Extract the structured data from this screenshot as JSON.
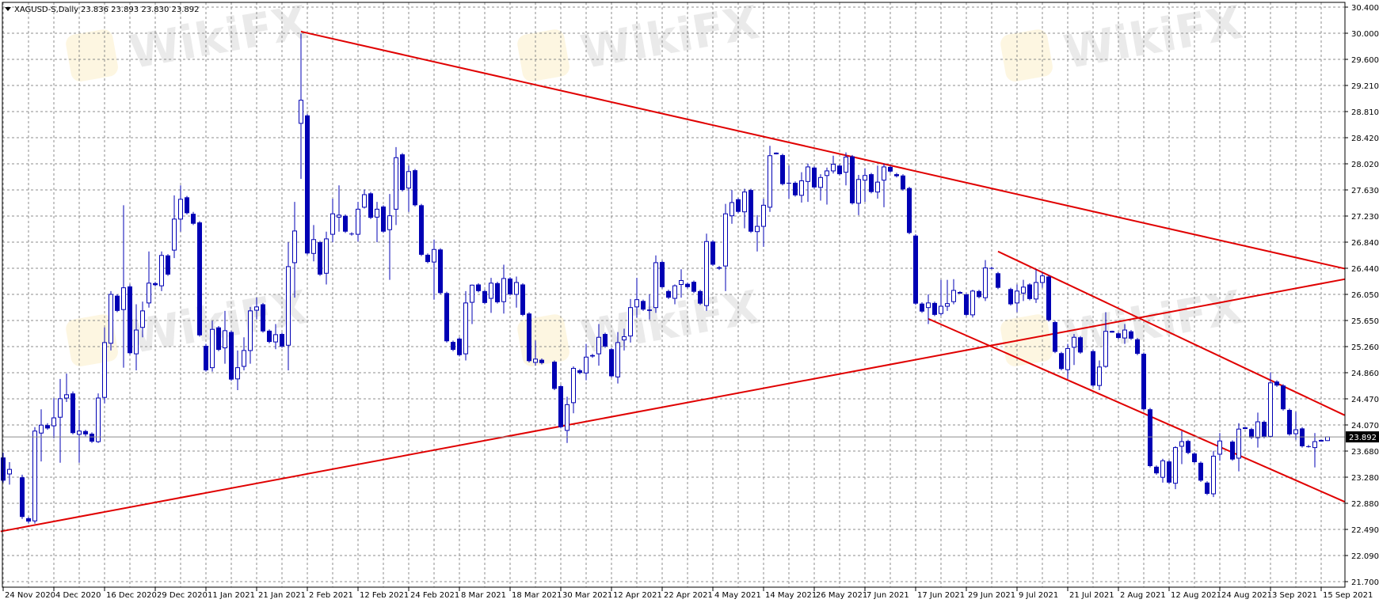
{
  "header": {
    "symbol_label": "XAGUSD-S,Daily",
    "ohlc_readout": "23.836 23.893 23.830 23.892",
    "menu_icon": "triangle-down-icon"
  },
  "watermark": "WikiFX",
  "colors": {
    "candle": "#0000b4",
    "trendline": "#e00000",
    "grid": "#8c8c8c",
    "price_line": "#8c8c8c",
    "price_label_bg": "#000000"
  },
  "chart_data": {
    "type": "candlestick",
    "symbol": "XAGUSD-S",
    "timeframe": "Daily",
    "grid": true,
    "ylim": [
      21.7,
      30.4
    ],
    "y_ticks": [
      "30.400",
      "30.000",
      "29.600",
      "29.210",
      "28.810",
      "28.420",
      "28.020",
      "27.630",
      "27.230",
      "26.840",
      "26.440",
      "26.050",
      "25.650",
      "25.260",
      "24.860",
      "24.470",
      "24.070",
      "23.680",
      "23.280",
      "22.880",
      "22.490",
      "22.090",
      "21.700"
    ],
    "x_ticks": [
      "24 Nov 2020",
      "4 Dec 2020",
      "16 Dec 2020",
      "29 Dec 2020",
      "11 Jan 2021",
      "21 Jan 2021",
      "2 Feb 2021",
      "12 Feb 2021",
      "24 Feb 2021",
      "8 Mar 2021",
      "18 Mar 2021",
      "30 Mar 2021",
      "12 Apr 2021",
      "22 Apr 2021",
      "4 May 2021",
      "14 May 2021",
      "26 May 2021",
      "7 Jun 2021",
      "17 Jun 2021",
      "29 Jun 2021",
      "9 Jul 2021",
      "21 Jul 2021",
      "2 Aug 2021",
      "12 Aug 2021",
      "24 Aug 2021",
      "3 Sep 2021",
      "15 Sep 2021"
    ],
    "current_price": "23.892",
    "ohlc_columns": [
      "open",
      "high",
      "low",
      "close"
    ],
    "candles": [
      [
        23.58,
        23.65,
        23.2,
        23.23
      ],
      [
        23.33,
        23.51,
        23.17,
        23.4
      ],
      null,
      [
        23.28,
        23.32,
        22.65,
        22.68
      ],
      [
        22.66,
        22.68,
        22.58,
        22.61
      ],
      [
        22.62,
        24.04,
        22.58,
        23.98
      ],
      [
        23.95,
        24.31,
        23.52,
        24.07
      ],
      [
        24.07,
        24.1,
        24.0,
        24.02
      ],
      [
        24.06,
        24.48,
        23.87,
        24.18
      ],
      [
        24.19,
        24.77,
        23.5,
        24.47
      ],
      [
        24.48,
        24.85,
        24.42,
        24.53
      ],
      [
        24.55,
        24.58,
        23.93,
        23.95
      ],
      [
        23.93,
        24.3,
        23.5,
        23.98
      ],
      [
        23.98,
        24.0,
        23.9,
        23.93
      ],
      [
        23.94,
        23.96,
        23.8,
        23.82
      ],
      [
        23.82,
        24.55,
        23.8,
        24.48
      ],
      [
        24.49,
        25.55,
        24.4,
        25.32
      ],
      [
        25.31,
        26.1,
        25.2,
        26.05
      ],
      [
        26.03,
        26.05,
        25.78,
        25.8
      ],
      [
        25.82,
        27.4,
        24.94,
        26.15
      ],
      [
        26.17,
        26.2,
        25.14,
        25.16
      ],
      [
        25.15,
        25.9,
        24.9,
        25.51
      ],
      [
        25.55,
        25.94,
        25.4,
        25.8
      ],
      [
        25.92,
        26.7,
        25.85,
        26.22
      ],
      [
        26.22,
        26.24,
        26.17,
        26.19
      ],
      [
        26.18,
        26.7,
        26.1,
        26.64
      ],
      [
        26.64,
        26.66,
        26.33,
        26.35
      ],
      [
        26.72,
        27.55,
        26.6,
        27.19
      ],
      [
        27.19,
        27.7,
        27.0,
        27.49
      ],
      [
        27.52,
        27.54,
        27.26,
        27.28
      ],
      [
        27.27,
        27.3,
        27.1,
        27.12
      ],
      [
        27.14,
        27.16,
        25.41,
        25.43
      ],
      [
        25.27,
        25.3,
        24.88,
        24.9
      ],
      [
        24.94,
        25.65,
        24.88,
        25.52
      ],
      [
        25.55,
        25.57,
        25.19,
        25.21
      ],
      [
        25.24,
        25.8,
        25.0,
        25.5
      ],
      [
        25.48,
        25.5,
        24.74,
        24.76
      ],
      [
        24.77,
        25.2,
        24.6,
        24.94
      ],
      [
        24.96,
        25.4,
        24.9,
        25.2
      ],
      [
        25.2,
        25.86,
        25.0,
        25.8
      ],
      [
        25.81,
        26.0,
        25.67,
        25.86
      ],
      [
        25.9,
        25.92,
        25.47,
        25.49
      ],
      [
        25.5,
        25.52,
        25.31,
        25.33
      ],
      [
        25.33,
        25.6,
        25.22,
        25.44
      ],
      [
        25.45,
        25.47,
        25.24,
        25.26
      ],
      [
        25.28,
        26.84,
        24.9,
        26.47
      ],
      [
        26.53,
        27.45,
        26.0,
        27.01
      ],
      [
        28.64,
        30.0,
        27.8,
        28.99
      ],
      [
        28.76,
        28.78,
        26.65,
        26.67
      ],
      [
        26.67,
        27.1,
        26.55,
        26.88
      ],
      [
        26.84,
        26.86,
        26.33,
        26.35
      ],
      [
        26.37,
        27.0,
        26.2,
        26.89
      ],
      [
        26.96,
        27.5,
        26.84,
        27.27
      ],
      [
        27.22,
        27.7,
        27.0,
        27.25
      ],
      [
        27.24,
        27.26,
        26.98,
        27.0
      ],
      [
        26.97,
        26.99,
        26.94,
        26.96
      ],
      [
        26.96,
        27.45,
        26.85,
        27.34
      ],
      [
        27.37,
        27.64,
        27.35,
        27.56
      ],
      [
        27.58,
        27.6,
        27.19,
        27.21
      ],
      [
        27.22,
        27.45,
        26.84,
        27.34
      ],
      [
        27.38,
        27.4,
        26.98,
        27.0
      ],
      [
        27.03,
        27.57,
        26.27,
        27.24
      ],
      [
        27.34,
        28.28,
        27.1,
        28.12
      ],
      [
        28.17,
        28.19,
        27.61,
        27.63
      ],
      [
        27.66,
        28.0,
        27.3,
        27.91
      ],
      [
        27.93,
        27.95,
        27.38,
        27.4
      ],
      [
        27.4,
        27.42,
        26.63,
        26.65
      ],
      [
        26.65,
        26.67,
        26.52,
        26.54
      ],
      [
        26.54,
        26.88,
        25.97,
        26.73
      ],
      [
        26.73,
        26.75,
        26.05,
        26.07
      ],
      [
        26.07,
        26.09,
        25.32,
        25.34
      ],
      [
        25.33,
        25.35,
        25.19,
        25.21
      ],
      [
        25.38,
        25.4,
        25.11,
        25.13
      ],
      [
        25.15,
        26.1,
        25.05,
        25.92
      ],
      [
        25.93,
        26.2,
        25.6,
        26.19
      ],
      [
        26.2,
        26.22,
        26.08,
        26.1
      ],
      [
        26.1,
        26.12,
        25.9,
        25.92
      ],
      [
        25.99,
        26.3,
        25.77,
        26.22
      ],
      [
        26.22,
        26.24,
        25.91,
        25.93
      ],
      [
        25.94,
        26.5,
        25.76,
        26.29
      ],
      [
        26.29,
        26.31,
        26.03,
        26.05
      ],
      [
        26.05,
        26.32,
        25.85,
        26.23
      ],
      [
        26.2,
        26.22,
        25.72,
        25.74
      ],
      [
        25.76,
        25.78,
        25.02,
        25.04
      ],
      [
        25.02,
        25.35,
        24.97,
        25.07
      ],
      [
        25.06,
        25.08,
        24.99,
        25.01
      ],
      null,
      [
        25.03,
        25.05,
        24.6,
        24.62
      ],
      [
        24.66,
        24.68,
        24.02,
        24.04
      ],
      [
        23.99,
        24.5,
        23.8,
        24.38
      ],
      [
        24.41,
        24.96,
        24.25,
        24.93
      ],
      [
        24.9,
        24.92,
        24.84,
        24.86
      ],
      [
        24.86,
        25.3,
        24.75,
        25.1
      ],
      [
        25.13,
        25.15,
        25.09,
        25.11
      ],
      [
        25.15,
        25.6,
        24.97,
        25.4
      ],
      [
        25.45,
        25.47,
        25.24,
        25.26
      ],
      [
        25.22,
        25.24,
        24.79,
        24.81
      ],
      [
        24.8,
        25.48,
        24.7,
        25.32
      ],
      [
        25.36,
        25.53,
        25.2,
        25.41
      ],
      [
        25.42,
        25.98,
        25.32,
        25.85
      ],
      [
        25.86,
        26.3,
        25.7,
        25.97
      ],
      [
        25.95,
        25.97,
        25.8,
        25.82
      ],
      [
        25.82,
        26.05,
        25.67,
        25.8
      ],
      [
        25.85,
        26.64,
        25.77,
        26.53
      ],
      [
        26.54,
        26.56,
        26.14,
        26.16
      ],
      [
        26.1,
        26.12,
        25.98,
        26.0
      ],
      [
        25.99,
        26.2,
        25.9,
        26.18
      ],
      [
        26.2,
        26.43,
        26.0,
        26.26
      ],
      [
        26.21,
        26.23,
        26.14,
        26.16
      ],
      [
        26.24,
        26.26,
        26.07,
        26.09
      ],
      [
        26.1,
        26.12,
        25.89,
        25.91
      ],
      [
        25.88,
        26.97,
        25.8,
        26.85
      ],
      [
        26.85,
        26.87,
        26.48,
        26.5
      ],
      [
        26.46,
        26.48,
        26.42,
        26.44
      ],
      [
        26.48,
        27.42,
        26.1,
        27.27
      ],
      [
        27.24,
        27.63,
        27.12,
        27.44
      ],
      [
        27.49,
        27.51,
        27.28,
        27.3
      ],
      [
        27.3,
        27.65,
        27.05,
        27.6
      ],
      [
        27.63,
        27.65,
        26.98,
        27.0
      ],
      [
        27.0,
        27.25,
        26.7,
        27.08
      ],
      [
        27.08,
        27.5,
        26.77,
        27.4
      ],
      [
        27.37,
        28.3,
        27.3,
        28.15
      ],
      [
        28.18,
        28.2,
        28.17,
        28.19
      ],
      [
        28.16,
        28.18,
        27.7,
        27.72
      ],
      [
        27.74,
        28.0,
        27.5,
        27.73
      ],
      [
        27.74,
        27.76,
        27.53,
        27.55
      ],
      [
        27.55,
        27.9,
        27.44,
        27.77
      ],
      [
        27.76,
        28.03,
        27.45,
        27.98
      ],
      [
        27.97,
        27.99,
        27.65,
        27.67
      ],
      [
        27.67,
        27.87,
        27.47,
        27.82
      ],
      [
        27.85,
        27.97,
        27.41,
        27.92
      ],
      [
        27.92,
        28.15,
        27.88,
        28.02
      ],
      [
        28.0,
        28.02,
        27.85,
        27.87
      ],
      [
        27.9,
        28.2,
        27.7,
        28.13
      ],
      [
        28.14,
        28.16,
        27.41,
        27.43
      ],
      [
        27.43,
        27.86,
        27.25,
        27.79
      ],
      [
        27.78,
        27.96,
        27.45,
        27.85
      ],
      [
        27.87,
        27.89,
        27.58,
        27.6
      ],
      [
        27.6,
        28.0,
        27.5,
        27.75
      ],
      [
        27.78,
        28.03,
        27.37,
        27.98
      ],
      [
        27.98,
        28.0,
        27.89,
        27.91
      ],
      [
        27.87,
        27.89,
        27.82,
        27.84
      ],
      [
        27.85,
        27.87,
        27.62,
        27.64
      ],
      [
        27.66,
        27.68,
        26.96,
        26.98
      ],
      [
        26.94,
        26.96,
        25.89,
        25.91
      ],
      [
        25.91,
        25.93,
        25.77,
        25.79
      ],
      [
        25.85,
        26.05,
        25.6,
        25.92
      ],
      [
        25.92,
        25.94,
        25.72,
        25.74
      ],
      [
        25.76,
        26.27,
        25.73,
        25.87
      ],
      [
        25.87,
        26.27,
        25.8,
        25.91
      ],
      [
        25.94,
        26.28,
        25.9,
        26.11
      ],
      [
        26.08,
        26.1,
        26.06,
        26.08
      ],
      [
        26.05,
        26.07,
        25.72,
        25.74
      ],
      [
        25.74,
        26.12,
        25.7,
        26.1
      ],
      [
        26.1,
        26.12,
        25.99,
        26.01
      ],
      [
        26.0,
        26.57,
        25.95,
        26.45
      ],
      [
        26.45,
        26.47,
        26.43,
        26.44
      ],
      [
        26.37,
        26.39,
        26.13,
        26.15
      ],
      null,
      [
        26.13,
        26.15,
        25.88,
        25.9
      ],
      [
        25.92,
        26.2,
        25.78,
        26.1
      ],
      [
        26.07,
        26.27,
        25.95,
        26.16
      ],
      [
        26.2,
        26.22,
        25.96,
        25.98
      ],
      [
        25.98,
        26.43,
        25.92,
        26.23
      ],
      [
        26.23,
        26.38,
        26.15,
        26.33
      ],
      [
        26.32,
        26.34,
        25.64,
        25.66
      ],
      [
        25.63,
        25.65,
        25.16,
        25.18
      ],
      [
        25.16,
        25.18,
        24.9,
        24.92
      ],
      [
        24.91,
        25.3,
        24.77,
        25.23
      ],
      [
        25.25,
        25.45,
        24.98,
        25.4
      ],
      [
        25.4,
        25.42,
        25.15,
        25.17
      ],
      null,
      [
        25.19,
        25.21,
        24.65,
        24.67
      ],
      [
        24.67,
        25.05,
        24.6,
        24.95
      ],
      [
        24.96,
        25.78,
        24.94,
        25.49
      ],
      [
        25.48,
        25.5,
        25.47,
        25.49
      ],
      [
        25.46,
        25.48,
        25.37,
        25.39
      ],
      [
        25.39,
        25.6,
        25.3,
        25.51
      ],
      [
        25.49,
        25.51,
        25.36,
        25.38
      ],
      [
        25.37,
        25.39,
        25.13,
        25.15
      ],
      [
        25.15,
        25.17,
        24.29,
        24.31
      ],
      [
        24.31,
        24.33,
        23.43,
        23.45
      ],
      [
        23.44,
        23.46,
        23.32,
        23.34
      ],
      [
        23.28,
        23.56,
        23.2,
        23.53
      ],
      [
        23.52,
        23.54,
        23.18,
        23.2
      ],
      [
        23.19,
        23.75,
        23.1,
        23.73
      ],
      [
        23.75,
        23.98,
        23.48,
        23.82
      ],
      [
        23.83,
        23.85,
        23.63,
        23.65
      ],
      [
        23.64,
        23.66,
        23.49,
        23.51
      ],
      [
        23.5,
        23.52,
        23.21,
        23.23
      ],
      [
        23.2,
        23.22,
        23.01,
        23.03
      ],
      [
        23.03,
        23.68,
        22.98,
        23.6
      ],
      [
        23.63,
        23.95,
        23.53,
        23.83
      ],
      null,
      [
        23.82,
        23.84,
        23.53,
        23.55
      ],
      [
        23.57,
        24.1,
        23.37,
        24.01
      ],
      [
        24.02,
        24.04,
        24.01,
        24.03
      ],
      [
        24.01,
        24.03,
        23.86,
        23.88
      ],
      [
        23.88,
        24.26,
        23.73,
        24.12
      ],
      [
        24.12,
        24.14,
        23.87,
        23.89
      ],
      [
        23.9,
        24.87,
        23.88,
        24.71
      ],
      [
        24.73,
        24.75,
        24.65,
        24.67
      ],
      [
        24.67,
        24.69,
        24.29,
        24.31
      ],
      [
        24.3,
        24.32,
        23.91,
        23.93
      ],
      [
        23.94,
        24.27,
        23.85,
        24.0
      ],
      [
        24.02,
        24.04,
        23.73,
        23.75
      ],
      [
        23.75,
        23.77,
        23.73,
        23.74
      ],
      [
        23.73,
        23.95,
        23.43,
        23.82
      ],
      [
        23.83,
        23.85,
        23.82,
        23.84
      ],
      [
        23.836,
        23.893,
        23.83,
        23.892
      ]
    ],
    "trendlines": [
      {
        "from": {
          "bar": 47,
          "price": 30.03
        },
        "to": {
          "bar": 211.7,
          "price": 26.44
        }
      },
      {
        "from": {
          "bar": -0.4,
          "price": 22.46
        },
        "to": {
          "bar": 211.7,
          "price": 26.28
        }
      },
      {
        "from": {
          "bar": 157,
          "price": 26.7
        },
        "to": {
          "bar": 211.7,
          "price": 24.22
        }
      },
      {
        "from": {
          "bar": 146,
          "price": 25.68
        },
        "to": {
          "bar": 211.7,
          "price": 22.91
        }
      }
    ]
  }
}
